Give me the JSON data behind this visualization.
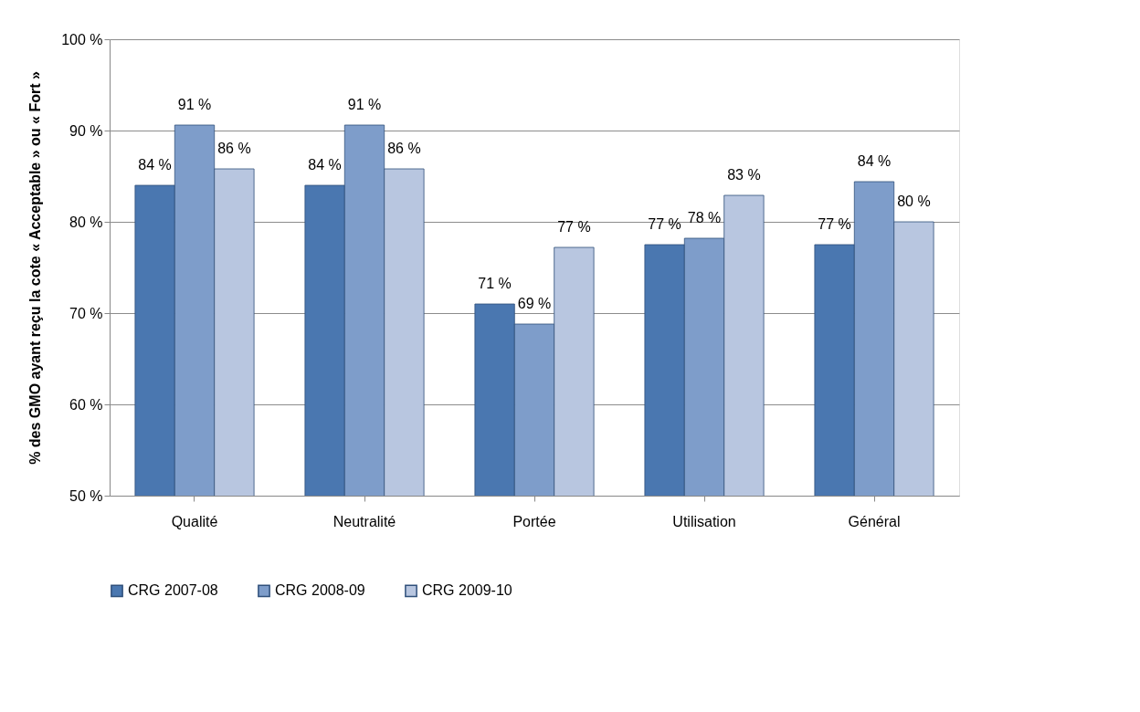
{
  "chart_data": {
    "type": "bar",
    "ylabel": "% des GMO ayant reçu la cote « Acceptable » ou « Fort »",
    "categories": [
      "Qualité",
      "Neutralité",
      "Portée",
      "Utilisation",
      "Général"
    ],
    "series": [
      {
        "name": "CRG 2007-08",
        "color": "#4a77b0",
        "values": [
          84,
          84,
          71,
          77.5,
          77.5
        ],
        "value_labels": [
          "84 %",
          "84 %",
          "71 %",
          "77 %",
          "77 %"
        ]
      },
      {
        "name": "CRG 2008-09",
        "color": "#7e9dca",
        "values": [
          90.6,
          90.6,
          68.8,
          78.2,
          84.4
        ],
        "value_labels": [
          "91 %",
          "91 %",
          "69 %",
          "78 %",
          "84 %"
        ]
      },
      {
        "name": "CRG 2009-10",
        "color": "#b8c6e0",
        "values": [
          85.8,
          85.8,
          77.2,
          82.9,
          80
        ],
        "value_labels": [
          "86 %",
          "86 %",
          "77 %",
          "83 %",
          "80 %"
        ]
      }
    ],
    "ylim": [
      50,
      100
    ],
    "yticks": [
      {
        "value": 50,
        "label": "50 %"
      },
      {
        "value": 60,
        "label": "60 %"
      },
      {
        "value": 70,
        "label": "70 %"
      },
      {
        "value": 80,
        "label": "80 %"
      },
      {
        "value": 90,
        "label": "90 %"
      },
      {
        "value": 100,
        "label": "100 %"
      }
    ],
    "grid": "y",
    "legend": "bottom"
  }
}
